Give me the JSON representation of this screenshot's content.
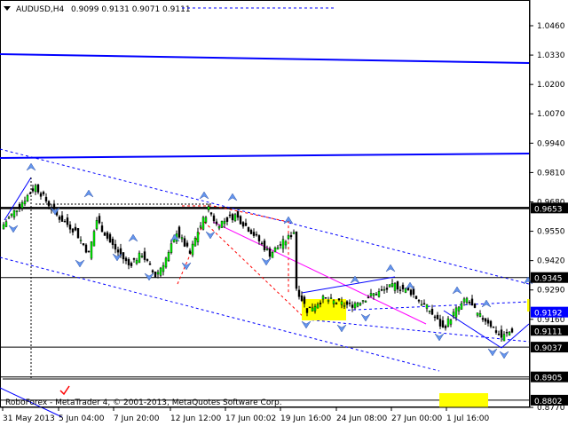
{
  "header": {
    "symbol": "AUDUSD,H4",
    "ohlc": "0.9099 0.9131 0.9071 0.9111"
  },
  "footer": {
    "copyright": "RoboForex - MetaTrader 4, © 2001-2013, MetaQuotes Software Corp."
  },
  "colors": {
    "bull": "#00ff00",
    "bear": "#000000",
    "trend": "#0000ff",
    "pitchfork": "#ff0000",
    "marker": "#ffff00",
    "current_price": "#0000ff",
    "fork_line": "#ff00ff"
  },
  "chart_data": {
    "type": "candlestick",
    "symbol": "AUDUSD",
    "timeframe": "H4",
    "ylim": [
      0.877,
      1.046
    ],
    "y_ticks": [
      "1.0460",
      "1.0330",
      "1.0200",
      "1.0070",
      "0.9940",
      "0.9810",
      "0.9680",
      "0.9550",
      "0.9420",
      "0.9290",
      "0.9160",
      "0.8770"
    ],
    "x_ticks": [
      "31 May 2013",
      "5 Jun 04:00",
      "7 Jun 20:00",
      "12 Jun 12:00",
      "17 Jun 00:02",
      "19 Jun 16:00",
      "24 Jun 08:00",
      "27 Jun 00:00",
      "1 Jul 16:00"
    ],
    "price_labels": [
      {
        "value": "0.9653",
        "style": "black"
      },
      {
        "value": "0.9345",
        "style": "black"
      },
      {
        "value": "0.9192",
        "style": "blue"
      },
      {
        "value": "0.9111",
        "style": "black"
      },
      {
        "value": "0.9037",
        "style": "black"
      },
      {
        "value": "0.8905",
        "style": "black"
      },
      {
        "value": "0.8802",
        "style": "black"
      }
    ],
    "horizontal_levels": [
      0.9653,
      0.9345,
      0.9037,
      0.8905,
      0.8802
    ],
    "close_path": [
      {
        "bar": 0,
        "close": 0.958
      },
      {
        "bar": 12,
        "close": 0.975
      },
      {
        "bar": 20,
        "close": 0.962
      },
      {
        "bar": 27,
        "close": 0.955
      },
      {
        "bar": 32,
        "close": 0.945
      },
      {
        "bar": 35,
        "close": 0.96
      },
      {
        "bar": 40,
        "close": 0.95
      },
      {
        "bar": 47,
        "close": 0.94
      },
      {
        "bar": 52,
        "close": 0.945
      },
      {
        "bar": 57,
        "close": 0.935
      },
      {
        "bar": 62,
        "close": 0.945
      },
      {
        "bar": 65,
        "close": 0.955
      },
      {
        "bar": 70,
        "close": 0.945
      },
      {
        "bar": 73,
        "close": 0.955
      },
      {
        "bar": 77,
        "close": 0.965
      },
      {
        "bar": 80,
        "close": 0.958
      },
      {
        "bar": 87,
        "close": 0.962
      },
      {
        "bar": 93,
        "close": 0.955
      },
      {
        "bar": 100,
        "close": 0.945
      },
      {
        "bar": 107,
        "close": 0.952
      },
      {
        "bar": 109,
        "close": 0.955
      },
      {
        "bar": 110,
        "close": 0.93
      },
      {
        "bar": 114,
        "close": 0.92
      },
      {
        "bar": 120,
        "close": 0.925
      },
      {
        "bar": 130,
        "close": 0.922
      },
      {
        "bar": 137,
        "close": 0.926
      },
      {
        "bar": 147,
        "close": 0.931
      },
      {
        "bar": 153,
        "close": 0.928
      },
      {
        "bar": 160,
        "close": 0.92
      },
      {
        "bar": 165,
        "close": 0.912
      },
      {
        "bar": 170,
        "close": 0.92
      },
      {
        "bar": 174,
        "close": 0.925
      },
      {
        "bar": 178,
        "close": 0.918
      },
      {
        "bar": 182,
        "close": 0.915
      },
      {
        "bar": 187,
        "close": 0.908
      },
      {
        "bar": 191,
        "close": 0.9111
      }
    ]
  }
}
